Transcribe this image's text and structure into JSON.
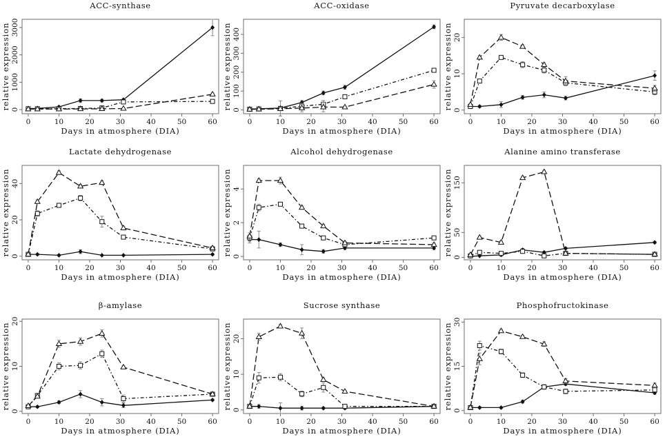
{
  "chart_data": [
    {
      "type": "line",
      "title": "ACC-synthase",
      "xlabel": "Days in atmosphere (DIA)",
      "ylabel": "relative expression",
      "xlim": [
        -2,
        62
      ],
      "ylim": [
        -150,
        3300
      ],
      "xticks": [
        0,
        10,
        20,
        30,
        40,
        50,
        60
      ],
      "yticks": [
        0,
        1000,
        2000,
        3000
      ],
      "x": [
        0,
        3,
        10,
        17,
        24,
        31,
        60
      ],
      "series": [
        {
          "name": "filled-diamond",
          "style": "solid",
          "marker": "diamond",
          "values": [
            40,
            45,
            100,
            330,
            330,
            360,
            3000
          ],
          "errors": [
            15,
            15,
            30,
            60,
            50,
            50,
            300
          ]
        },
        {
          "name": "square",
          "style": "dashdot",
          "marker": "square",
          "values": [
            30,
            30,
            35,
            40,
            60,
            280,
            300
          ],
          "errors": [
            10,
            10,
            10,
            10,
            20,
            40,
            30
          ]
        },
        {
          "name": "triangle",
          "style": "dashed",
          "marker": "triangle",
          "values": [
            20,
            20,
            20,
            25,
            30,
            40,
            560
          ],
          "errors": [
            10,
            10,
            10,
            10,
            10,
            10,
            50
          ]
        }
      ]
    },
    {
      "type": "line",
      "title": "ACC-oxidase",
      "xlabel": "Days in atmosphere (DIA)",
      "ylabel": "relative expression",
      "xlim": [
        -2,
        62
      ],
      "ylim": [
        -20,
        480
      ],
      "xticks": [
        0,
        10,
        20,
        30,
        40,
        50,
        60
      ],
      "yticks": [
        0,
        100,
        200,
        300,
        400
      ],
      "x": [
        0,
        3,
        10,
        17,
        24,
        31,
        60
      ],
      "series": [
        {
          "name": "filled-diamond",
          "style": "solid",
          "marker": "diamond",
          "values": [
            5,
            6,
            10,
            40,
            90,
            120,
            440
          ],
          "errors": [
            5,
            5,
            5,
            10,
            10,
            10,
            10
          ]
        },
        {
          "name": "square",
          "style": "dashdot",
          "marker": "square",
          "values": [
            4,
            5,
            8,
            20,
            30,
            70,
            210
          ],
          "errors": [
            3,
            3,
            40,
            15,
            20,
            10,
            10
          ]
        },
        {
          "name": "triangle",
          "style": "dashed",
          "marker": "triangle",
          "values": [
            3,
            4,
            6,
            10,
            15,
            15,
            135
          ],
          "errors": [
            3,
            3,
            10,
            20,
            25,
            5,
            20
          ]
        }
      ]
    },
    {
      "type": "line",
      "title": "Pyruvate decarboxylase",
      "xlabel": "Days in atmosphere (DIA)",
      "ylabel": "relative expression",
      "xlim": [
        -2,
        62
      ],
      "ylim": [
        -1,
        25
      ],
      "xticks": [
        0,
        10,
        20,
        30,
        40,
        50,
        60
      ],
      "yticks": [
        0,
        10,
        20
      ],
      "x": [
        0,
        3,
        10,
        17,
        24,
        31,
        60
      ],
      "series": [
        {
          "name": "filled-diamond",
          "style": "solid",
          "marker": "diamond",
          "values": [
            1,
            1,
            1.5,
            3.5,
            4.2,
            3.3,
            9.5
          ],
          "errors": [
            0.3,
            0.3,
            0.8,
            0.5,
            0.8,
            0.5,
            1.3
          ]
        },
        {
          "name": "square",
          "style": "dashdot",
          "marker": "square",
          "values": [
            1,
            8,
            14.5,
            12.5,
            11,
            7.5,
            5
          ],
          "errors": [
            0.3,
            0.5,
            0.5,
            0.8,
            0.8,
            0.8,
            0.8
          ]
        },
        {
          "name": "triangle",
          "style": "dashed",
          "marker": "triangle",
          "values": [
            1.5,
            14.5,
            20,
            17.5,
            12.5,
            8,
            6
          ],
          "errors": [
            0.3,
            0.5,
            0.8,
            0.5,
            0.5,
            1.2,
            0.8
          ]
        }
      ]
    },
    {
      "type": "line",
      "title": "Lactate dehydrogenase",
      "xlabel": "Days in atmosphere (DIA)",
      "ylabel": "relative expression",
      "xlim": [
        -2,
        62
      ],
      "ylim": [
        -2,
        50
      ],
      "xticks": [
        0,
        10,
        20,
        30,
        40,
        50,
        60
      ],
      "yticks": [
        0,
        20,
        40
      ],
      "x": [
        0,
        3,
        10,
        17,
        24,
        31,
        60
      ],
      "series": [
        {
          "name": "filled-diamond",
          "style": "solid",
          "marker": "diamond",
          "values": [
            1,
            1,
            0.5,
            2.5,
            0.5,
            0.5,
            1
          ],
          "errors": [
            0.5,
            0.5,
            0.5,
            1,
            0.3,
            0.3,
            0.5
          ]
        },
        {
          "name": "square",
          "style": "dashdot",
          "marker": "square",
          "values": [
            1,
            23.5,
            28,
            32,
            19,
            10.5,
            4
          ],
          "errors": [
            0.5,
            1.5,
            1,
            1.5,
            3,
            1,
            1
          ]
        },
        {
          "name": "triangle",
          "style": "dashed",
          "marker": "triangle",
          "values": [
            1,
            30,
            46,
            38.5,
            40.5,
            15.5,
            4.5
          ],
          "errors": [
            0.5,
            1,
            1,
            1,
            1,
            1,
            1
          ]
        }
      ]
    },
    {
      "type": "line",
      "title": "Alcohol dehydrogenase",
      "xlabel": "Days in atmosphere (DIA)",
      "ylabel": "relative expression",
      "xlim": [
        -2,
        62
      ],
      "ylim": [
        -0.2,
        5.4
      ],
      "xticks": [
        0,
        10,
        20,
        30,
        40,
        50,
        60
      ],
      "yticks": [
        0,
        2,
        4
      ],
      "x": [
        0,
        3,
        10,
        17,
        24,
        31,
        60
      ],
      "series": [
        {
          "name": "filled-diamond",
          "style": "solid",
          "marker": "diamond",
          "values": [
            1,
            1,
            0.7,
            0.4,
            0.3,
            0.5,
            0.5
          ],
          "errors": [
            0.2,
            0.5,
            0.1,
            0.3,
            0.1,
            0.1,
            0.1
          ]
        },
        {
          "name": "square",
          "style": "dashdot",
          "marker": "square",
          "values": [
            1.1,
            2.9,
            3.1,
            1.8,
            1.1,
            0.7,
            1.1
          ],
          "errors": [
            0.2,
            0.2,
            0.1,
            0.1,
            0.1,
            0.1,
            0.1
          ]
        },
        {
          "name": "triangle",
          "style": "dashed",
          "marker": "triangle",
          "values": [
            1.2,
            4.5,
            4.5,
            2.9,
            1.8,
            0.8,
            0.7
          ],
          "errors": [
            0.2,
            0.1,
            0.2,
            0.1,
            0.1,
            0.1,
            0.1
          ]
        }
      ]
    },
    {
      "type": "line",
      "title": "Alanine amino transferase",
      "xlabel": "Days in atmosphere (DIA)",
      "ylabel": "relative expression",
      "xlim": [
        -2,
        62
      ],
      "ylim": [
        -5,
        185
      ],
      "xticks": [
        0,
        10,
        20,
        30,
        40,
        50,
        60
      ],
      "yticks": [
        0,
        50,
        150
      ],
      "x": [
        0,
        3,
        10,
        17,
        24,
        31,
        60
      ],
      "series": [
        {
          "name": "filled-diamond",
          "style": "solid",
          "marker": "diamond",
          "values": [
            2,
            3,
            5,
            15,
            10,
            18,
            30
          ],
          "errors": [
            1,
            1,
            3,
            3,
            2,
            2,
            2
          ]
        },
        {
          "name": "square",
          "style": "dashdot",
          "marker": "square",
          "values": [
            3,
            10,
            8,
            12,
            3,
            8,
            6
          ],
          "errors": [
            1,
            2,
            2,
            3,
            2,
            2,
            2
          ]
        },
        {
          "name": "triangle",
          "style": "dashed",
          "marker": "triangle",
          "values": [
            5,
            40,
            30,
            160,
            172,
            8,
            6
          ],
          "errors": [
            1,
            3,
            3,
            3,
            3,
            2,
            2
          ]
        }
      ]
    },
    {
      "type": "line",
      "title": "β-amylase",
      "xlabel": "Days in atmosphere (DIA)",
      "ylabel": "relative expression",
      "xlim": [
        -2,
        62
      ],
      "ylim": [
        -0.5,
        20.5
      ],
      "xticks": [
        0,
        10,
        20,
        30,
        40,
        50,
        60
      ],
      "yticks": [
        0,
        10,
        20
      ],
      "x": [
        0,
        3,
        10,
        17,
        24,
        31,
        60
      ],
      "series": [
        {
          "name": "filled-diamond",
          "style": "solid",
          "marker": "diamond",
          "values": [
            1,
            1,
            2,
            3.8,
            2,
            1.3,
            2.5
          ],
          "errors": [
            0.2,
            0.2,
            0.3,
            0.8,
            0.8,
            0.5,
            0.2
          ]
        },
        {
          "name": "square",
          "style": "dashdot",
          "marker": "square",
          "values": [
            1,
            3.5,
            10,
            10.2,
            12.8,
            2.8,
            3.8
          ],
          "errors": [
            0.2,
            0.3,
            0.8,
            0.8,
            0.8,
            0.8,
            0.3
          ]
        },
        {
          "name": "triangle",
          "style": "dashed",
          "marker": "triangle",
          "values": [
            1.2,
            3.3,
            15,
            15.5,
            17.3,
            9.8,
            3.8
          ],
          "errors": [
            0.2,
            0.3,
            0.8,
            0.8,
            0.8,
            0.3,
            0.3
          ]
        }
      ]
    },
    {
      "type": "line",
      "title": "Sucrose synthase",
      "xlabel": "Days in atmosphere (DIA)",
      "ylabel": "relative expression",
      "xlim": [
        -2,
        62
      ],
      "ylim": [
        -1,
        25.5
      ],
      "xticks": [
        0,
        10,
        20,
        30,
        40,
        50,
        60
      ],
      "yticks": [
        0,
        10,
        20
      ],
      "x": [
        0,
        3,
        10,
        17,
        24,
        31,
        60
      ],
      "series": [
        {
          "name": "filled-diamond",
          "style": "solid",
          "marker": "diamond",
          "values": [
            1,
            1,
            0.5,
            0.5,
            0.5,
            0.5,
            1
          ],
          "errors": [
            0.5,
            0.5,
            1.5,
            0.5,
            0.3,
            0.3,
            0.3
          ]
        },
        {
          "name": "square",
          "style": "dashdot",
          "marker": "square",
          "values": [
            1,
            9,
            9.2,
            4.5,
            6.3,
            1,
            1
          ],
          "errors": [
            0.5,
            1.5,
            1,
            0.8,
            1.3,
            0.5,
            0.3
          ]
        },
        {
          "name": "triangle",
          "style": "dashed",
          "marker": "triangle",
          "values": [
            1,
            20.5,
            23.5,
            21.5,
            8.5,
            5.2,
            1
          ],
          "errors": [
            0.5,
            1,
            0.5,
            1.5,
            0.5,
            0.3,
            0.3
          ]
        }
      ]
    },
    {
      "type": "line",
      "title": "Phosphofructokinase",
      "xlabel": "Days in atmosphere (DIA)",
      "ylabel": "relative expression",
      "xlim": [
        -2,
        62
      ],
      "ylim": [
        -1,
        31
      ],
      "xticks": [
        0,
        10,
        20,
        30,
        40,
        50,
        60
      ],
      "yticks": [
        0,
        15,
        30
      ],
      "x": [
        0,
        3,
        10,
        17,
        24,
        31,
        60
      ],
      "series": [
        {
          "name": "filled-diamond",
          "style": "solid",
          "marker": "diamond",
          "values": [
            1,
            1,
            1,
            3,
            8,
            9,
            6
          ],
          "errors": [
            0.3,
            0.3,
            0.3,
            0.5,
            0.5,
            0.5,
            0.5
          ]
        },
        {
          "name": "square",
          "style": "dashdot",
          "marker": "square",
          "values": [
            1,
            22,
            20,
            12,
            8,
            6.5,
            7
          ],
          "errors": [
            0.3,
            1.5,
            0.8,
            0.8,
            0.8,
            0.8,
            0.5
          ]
        },
        {
          "name": "triangle",
          "style": "dashed",
          "marker": "triangle",
          "values": [
            1,
            17.5,
            27,
            25,
            22.5,
            10,
            8.5
          ],
          "errors": [
            0.3,
            2,
            0.5,
            0.5,
            0.8,
            0.8,
            0.8
          ]
        }
      ]
    }
  ]
}
